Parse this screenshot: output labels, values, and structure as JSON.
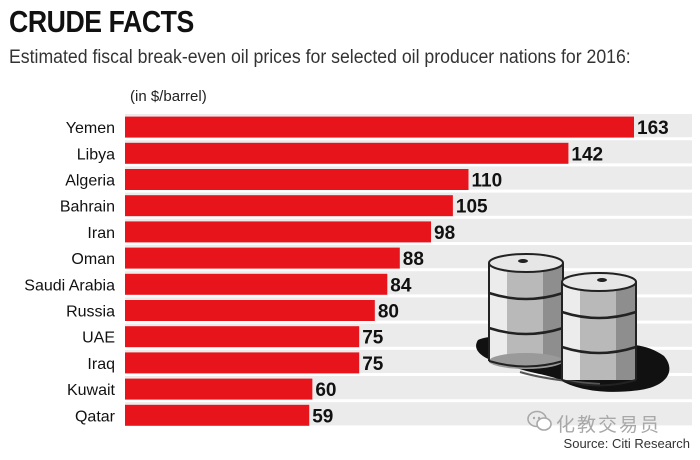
{
  "header": {
    "title": "CRUDE FACTS",
    "subtitle": "Estimated fiscal break-even oil prices for selected oil producer nations for 2016:",
    "unit_note": "(in $/barrel)"
  },
  "footer": {
    "source": "Source: Citi Research",
    "watermark": "化教交易员"
  },
  "colors": {
    "bar": "#e8141c",
    "stripe": "#ebebeb",
    "text": "#111111"
  },
  "chart_data": {
    "type": "bar",
    "orientation": "horizontal",
    "title": "CRUDE FACTS",
    "subtitle": "Estimated fiscal break-even oil prices for selected oil producer nations for 2016:",
    "categories": [
      "Yemen",
      "Libya",
      "Algeria",
      "Bahrain",
      "Iran",
      "Oman",
      "Saudi Arabia",
      "Russia",
      "UAE",
      "Iraq",
      "Kuwait",
      "Qatar"
    ],
    "values": [
      163,
      142,
      110,
      105,
      98,
      88,
      84,
      80,
      75,
      75,
      60,
      59
    ],
    "value_labels": [
      "163",
      "142",
      "110",
      "105",
      "98",
      "88",
      "84",
      "80",
      "75",
      "75",
      "60",
      "59"
    ],
    "xlim": [
      0,
      163
    ],
    "ylabel": "(in $/barrel)",
    "grid": false,
    "legend": "none"
  }
}
